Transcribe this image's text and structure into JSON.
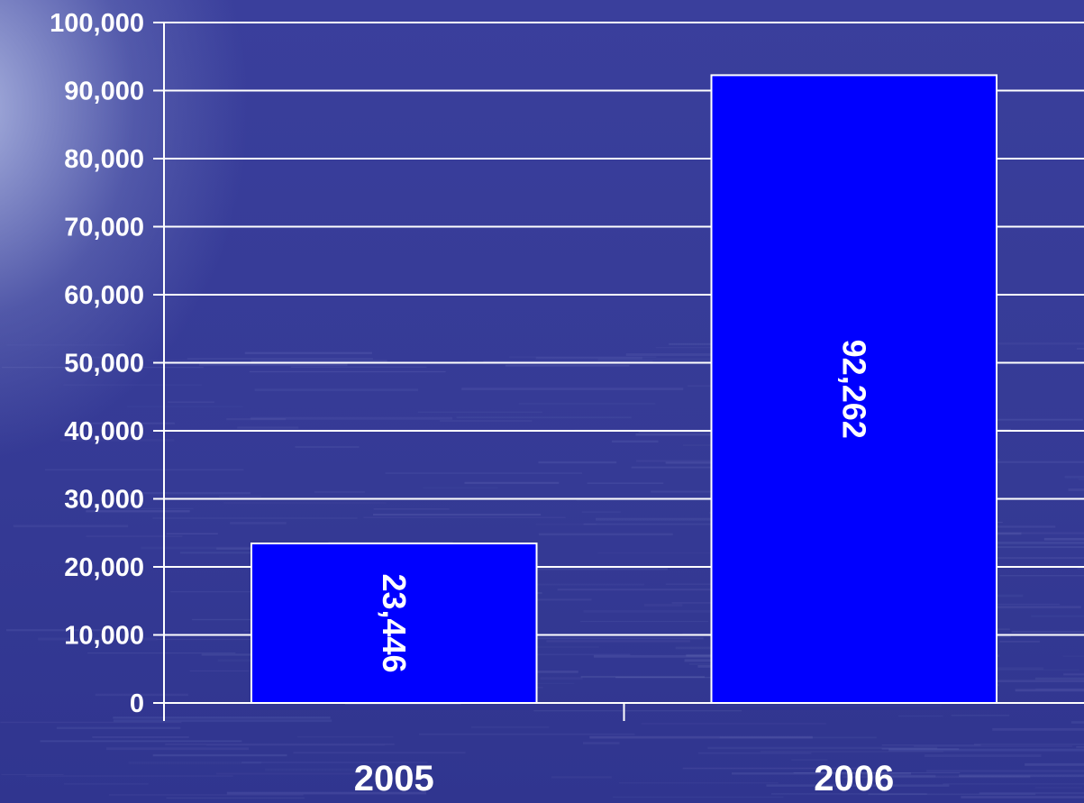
{
  "chart_data": {
    "type": "bar",
    "categories": [
      "2005",
      "2006"
    ],
    "values": [
      23446,
      92262
    ],
    "data_labels": [
      "23,446",
      "92,262"
    ],
    "ylim": [
      0,
      100000
    ],
    "yticks": [
      0,
      10000,
      20000,
      30000,
      40000,
      50000,
      60000,
      70000,
      80000,
      90000,
      100000
    ],
    "ytick_labels": [
      "0",
      "10,000",
      "20,000",
      "30,000",
      "40,000",
      "50,000",
      "60,000",
      "70,000",
      "80,000",
      "90,000",
      "100,000"
    ],
    "grid": true,
    "legend": "none",
    "colors": {
      "bar_fill": "#0000ff",
      "bar_stroke": "#ffffff",
      "grid": "#ffffff",
      "text": "#ffffff"
    }
  }
}
